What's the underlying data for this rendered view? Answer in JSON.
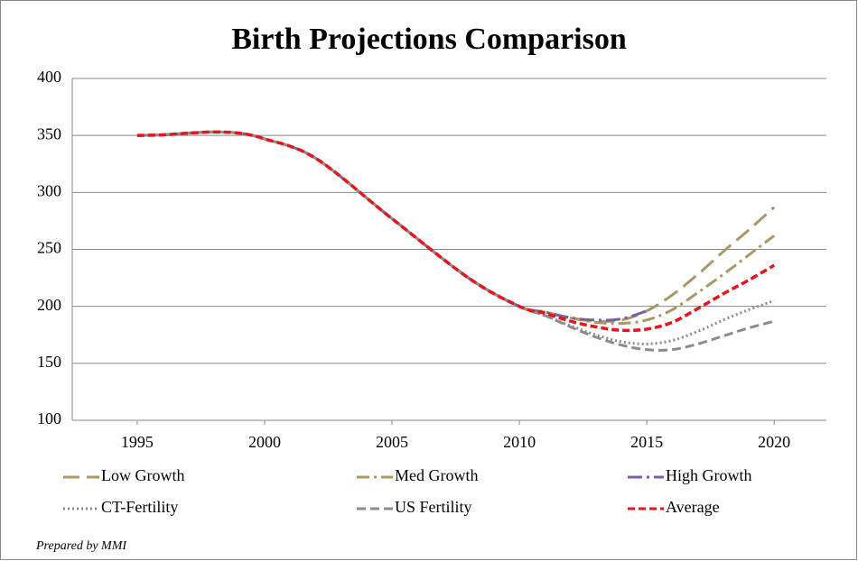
{
  "chart_data": {
    "type": "line",
    "title": "Birth Projections Comparison",
    "x": [
      1995,
      1996,
      1997,
      1998,
      1999,
      2000,
      2002,
      2005,
      2008,
      2010,
      2011,
      2012,
      2013,
      2014,
      2015,
      2016,
      2017,
      2018,
      2019,
      2020
    ],
    "series": [
      {
        "name": "Low Growth",
        "color": "#a89866",
        "dash": "18,8",
        "values": [
          350,
          350.5,
          352,
          353,
          352,
          347,
          330,
          277,
          225,
          200,
          195,
          190,
          187,
          188,
          196,
          210,
          228,
          248,
          267,
          287
        ]
      },
      {
        "name": "Med Growth",
        "color": "#a89866",
        "dash": "14,5,3,5",
        "values": [
          350,
          350.5,
          352,
          353,
          352,
          347,
          330,
          277,
          225,
          200,
          195,
          190,
          186,
          185,
          188,
          197,
          212,
          228,
          245,
          262
        ]
      },
      {
        "name": "High Growth",
        "color": "#7a5fa0",
        "dash": "16,5,3,5",
        "values": [
          350,
          350.5,
          352,
          353,
          352,
          347,
          330,
          277,
          225,
          200,
          195,
          190,
          188,
          189,
          196,
          null,
          null,
          null,
          null,
          null
        ]
      },
      {
        "name": "CT-Fertility",
        "color": "#8c8c8c",
        "dash": "2,3",
        "values": [
          350,
          350.5,
          352,
          353,
          352,
          347,
          330,
          277,
          225,
          200,
          192,
          183,
          175,
          169,
          167,
          170,
          178,
          188,
          197,
          205
        ]
      },
      {
        "name": "US Fertility",
        "color": "#8c8c8c",
        "dash": "10,5",
        "values": [
          350,
          350.5,
          352,
          353,
          352,
          347,
          330,
          277,
          225,
          200,
          192,
          182,
          173,
          166,
          162,
          162,
          167,
          174,
          181,
          187
        ]
      },
      {
        "name": "Average",
        "color": "#e8141c",
        "dash": "8,4",
        "values": [
          350,
          350.5,
          352,
          353,
          352,
          347,
          330,
          277,
          225,
          200,
          194,
          187,
          182,
          179,
          180,
          186,
          198,
          211,
          223,
          236
        ]
      }
    ],
    "xlim": [
      1992.45,
      2022.05
    ],
    "xticks": [
      1995,
      2000,
      2005,
      2010,
      2015,
      2020
    ],
    "ylim": [
      100,
      400
    ],
    "yticks": [
      100,
      150,
      200,
      250,
      300,
      350,
      400
    ],
    "grid": true,
    "legend": "bottom",
    "footnote": "Prepared by MMI"
  }
}
